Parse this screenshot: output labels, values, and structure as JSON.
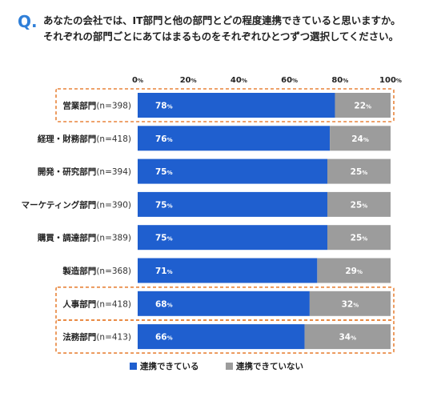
{
  "question": {
    "mark": "Q.",
    "line1": "あなたの会社では、IT部門と他の部門とどの程度連携できていると思いますか。",
    "line2": "それぞれの部門ごとにあてはまるものをそれぞれひとつずつ選択してください。"
  },
  "chart_data": {
    "type": "bar",
    "orientation": "horizontal",
    "stacked": true,
    "percent_suffix": "%",
    "x_ticks": [
      "0%",
      "20%",
      "40%",
      "60%",
      "80%",
      "100%"
    ],
    "xlim": [
      0,
      100
    ],
    "categories": [
      {
        "name": "営業部門",
        "n": "(n=398)",
        "highlighted": true
      },
      {
        "name": "経理・財務部門",
        "n": "(n=418)",
        "highlighted": false
      },
      {
        "name": "開発・研究部門",
        "n": "(n=394)",
        "highlighted": false
      },
      {
        "name": "マーケティング部門",
        "n": "(n=390)",
        "highlighted": false
      },
      {
        "name": "購買・調達部門",
        "n": "(n=389)",
        "highlighted": false
      },
      {
        "name": "製造部門",
        "n": "(n=368)",
        "highlighted": false
      },
      {
        "name": "人事部門",
        "n": "(n=418)",
        "highlighted": true
      },
      {
        "name": "法務部門",
        "n": "(n=413)",
        "highlighted": true
      }
    ],
    "series": [
      {
        "name": "連携できている",
        "color": "#1f5fcf",
        "values": [
          78,
          76,
          75,
          75,
          75,
          71,
          68,
          66
        ]
      },
      {
        "name": "連携できていない",
        "color": "#9c9c9c",
        "values": [
          22,
          24,
          25,
          25,
          25,
          29,
          32,
          34
        ]
      }
    ],
    "highlight_color": "#e8843a",
    "legend_position": "bottom-left",
    "grid": false
  }
}
